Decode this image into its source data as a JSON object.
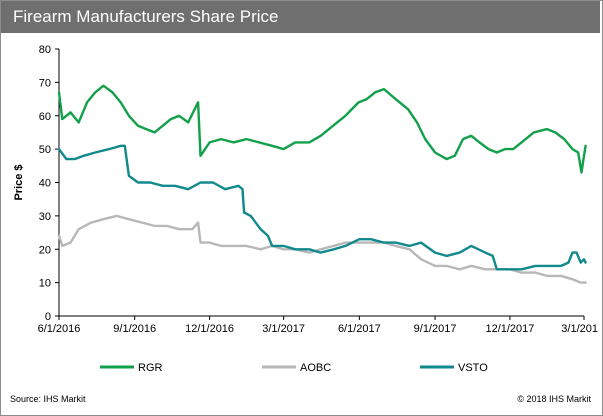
{
  "header": {
    "title": "Firearm Manufacturers Share Price"
  },
  "footer": {
    "source": "Source: IHS Markit",
    "copyright": "© 2018 IHS Markit"
  },
  "chart_data": {
    "type": "line",
    "ylabel": "Price $",
    "xlabel": "",
    "ylim": [
      0,
      80
    ],
    "y_ticks": [
      "0",
      "10",
      "20",
      "30",
      "40",
      "50",
      "60",
      "70",
      "80"
    ],
    "x_tick_labels": [
      "6/1/2016",
      "9/1/2016",
      "12/1/2016",
      "3/1/2017",
      "6/1/2017",
      "9/1/2017",
      "12/1/2017",
      "3/1/201"
    ],
    "x_tick_dates": [
      "2016-06-01",
      "2016-09-01",
      "2016-12-01",
      "2017-03-01",
      "2017-06-01",
      "2017-09-01",
      "2017-12-01",
      "2018-03-01"
    ],
    "grid": false,
    "legend_position": "bottom",
    "series": [
      {
        "name": "RGR",
        "color": "#12a04a",
        "points": [
          [
            "2016-06-01",
            67
          ],
          [
            "2016-06-05",
            59
          ],
          [
            "2016-06-15",
            61
          ],
          [
            "2016-06-25",
            58
          ],
          [
            "2016-07-05",
            64
          ],
          [
            "2016-07-15",
            67
          ],
          [
            "2016-07-25",
            69
          ],
          [
            "2016-08-05",
            67
          ],
          [
            "2016-08-15",
            64
          ],
          [
            "2016-08-25",
            60
          ],
          [
            "2016-09-05",
            57
          ],
          [
            "2016-09-15",
            56
          ],
          [
            "2016-09-25",
            55
          ],
          [
            "2016-10-05",
            57
          ],
          [
            "2016-10-15",
            59
          ],
          [
            "2016-10-25",
            60
          ],
          [
            "2016-11-05",
            58
          ],
          [
            "2016-11-15",
            63
          ],
          [
            "2016-11-17",
            64
          ],
          [
            "2016-11-20",
            48
          ],
          [
            "2016-12-01",
            52
          ],
          [
            "2016-12-15",
            53
          ],
          [
            "2016-12-30",
            52
          ],
          [
            "2017-01-15",
            53
          ],
          [
            "2017-01-30",
            52
          ],
          [
            "2017-02-15",
            51
          ],
          [
            "2017-03-01",
            50
          ],
          [
            "2017-03-15",
            52
          ],
          [
            "2017-04-01",
            52
          ],
          [
            "2017-04-15",
            54
          ],
          [
            "2017-04-30",
            57
          ],
          [
            "2017-05-15",
            60
          ],
          [
            "2017-05-31",
            64
          ],
          [
            "2017-06-10",
            65
          ],
          [
            "2017-06-20",
            67
          ],
          [
            "2017-07-01",
            68
          ],
          [
            "2017-07-15",
            65
          ],
          [
            "2017-07-30",
            62
          ],
          [
            "2017-08-10",
            58
          ],
          [
            "2017-08-20",
            53
          ],
          [
            "2017-09-01",
            49
          ],
          [
            "2017-09-15",
            47
          ],
          [
            "2017-09-25",
            48
          ],
          [
            "2017-10-05",
            53
          ],
          [
            "2017-10-15",
            54
          ],
          [
            "2017-10-25",
            52
          ],
          [
            "2017-11-05",
            50
          ],
          [
            "2017-11-15",
            49
          ],
          [
            "2017-11-25",
            50
          ],
          [
            "2017-12-05",
            50
          ],
          [
            "2017-12-15",
            52
          ],
          [
            "2017-12-30",
            55
          ],
          [
            "2018-01-15",
            56
          ],
          [
            "2018-01-25",
            55
          ],
          [
            "2018-02-05",
            53
          ],
          [
            "2018-02-15",
            50
          ],
          [
            "2018-02-22",
            49
          ],
          [
            "2018-02-26",
            43
          ],
          [
            "2018-03-01",
            48
          ],
          [
            "2018-03-03",
            51
          ]
        ]
      },
      {
        "name": "AOBC",
        "color": "#b7b7b7",
        "points": [
          [
            "2016-06-01",
            24
          ],
          [
            "2016-06-05",
            21
          ],
          [
            "2016-06-15",
            22
          ],
          [
            "2016-06-25",
            26
          ],
          [
            "2016-07-10",
            28
          ],
          [
            "2016-07-25",
            29
          ],
          [
            "2016-08-10",
            30
          ],
          [
            "2016-08-25",
            29
          ],
          [
            "2016-09-10",
            28
          ],
          [
            "2016-09-25",
            27
          ],
          [
            "2016-10-10",
            27
          ],
          [
            "2016-10-25",
            26
          ],
          [
            "2016-11-10",
            26
          ],
          [
            "2016-11-17",
            28
          ],
          [
            "2016-11-20",
            22
          ],
          [
            "2016-12-01",
            22
          ],
          [
            "2016-12-15",
            21
          ],
          [
            "2017-01-01",
            21
          ],
          [
            "2017-01-15",
            21
          ],
          [
            "2017-02-01",
            20
          ],
          [
            "2017-02-15",
            21
          ],
          [
            "2017-03-01",
            20
          ],
          [
            "2017-03-15",
            20
          ],
          [
            "2017-04-01",
            19
          ],
          [
            "2017-04-15",
            20
          ],
          [
            "2017-05-01",
            21
          ],
          [
            "2017-05-15",
            22
          ],
          [
            "2017-06-01",
            22
          ],
          [
            "2017-06-15",
            22
          ],
          [
            "2017-07-01",
            22
          ],
          [
            "2017-07-15",
            21
          ],
          [
            "2017-08-01",
            20
          ],
          [
            "2017-08-15",
            17
          ],
          [
            "2017-09-01",
            15
          ],
          [
            "2017-09-15",
            15
          ],
          [
            "2017-10-01",
            14
          ],
          [
            "2017-10-15",
            15
          ],
          [
            "2017-11-01",
            14
          ],
          [
            "2017-11-15",
            14
          ],
          [
            "2017-12-01",
            14
          ],
          [
            "2017-12-15",
            13
          ],
          [
            "2018-01-01",
            13
          ],
          [
            "2018-01-15",
            12
          ],
          [
            "2018-02-01",
            12
          ],
          [
            "2018-02-15",
            11
          ],
          [
            "2018-02-25",
            10
          ],
          [
            "2018-03-03",
            10
          ]
        ]
      },
      {
        "name": "VSTO",
        "color": "#11898d",
        "points": [
          [
            "2016-06-01",
            50
          ],
          [
            "2016-06-10",
            47
          ],
          [
            "2016-06-20",
            47
          ],
          [
            "2016-07-01",
            48
          ],
          [
            "2016-07-15",
            49
          ],
          [
            "2016-08-01",
            50
          ],
          [
            "2016-08-15",
            51
          ],
          [
            "2016-08-20",
            51
          ],
          [
            "2016-08-25",
            42
          ],
          [
            "2016-09-05",
            40
          ],
          [
            "2016-09-20",
            40
          ],
          [
            "2016-10-05",
            39
          ],
          [
            "2016-10-20",
            39
          ],
          [
            "2016-11-05",
            38
          ],
          [
            "2016-11-20",
            40
          ],
          [
            "2016-12-05",
            40
          ],
          [
            "2016-12-20",
            38
          ],
          [
            "2017-01-05",
            39
          ],
          [
            "2017-01-10",
            38
          ],
          [
            "2017-01-12",
            31
          ],
          [
            "2017-01-20",
            30
          ],
          [
            "2017-02-01",
            26
          ],
          [
            "2017-02-10",
            24
          ],
          [
            "2017-02-15",
            21
          ],
          [
            "2017-03-01",
            21
          ],
          [
            "2017-03-15",
            20
          ],
          [
            "2017-04-01",
            20
          ],
          [
            "2017-04-15",
            19
          ],
          [
            "2017-05-01",
            20
          ],
          [
            "2017-05-15",
            21
          ],
          [
            "2017-06-01",
            23
          ],
          [
            "2017-06-15",
            23
          ],
          [
            "2017-07-01",
            22
          ],
          [
            "2017-07-15",
            22
          ],
          [
            "2017-08-01",
            21
          ],
          [
            "2017-08-15",
            22
          ],
          [
            "2017-09-01",
            19
          ],
          [
            "2017-09-15",
            18
          ],
          [
            "2017-10-01",
            19
          ],
          [
            "2017-10-15",
            21
          ],
          [
            "2017-11-01",
            19
          ],
          [
            "2017-11-10",
            18
          ],
          [
            "2017-11-15",
            14
          ],
          [
            "2017-12-01",
            14
          ],
          [
            "2017-12-15",
            14
          ],
          [
            "2018-01-01",
            15
          ],
          [
            "2018-01-15",
            15
          ],
          [
            "2018-02-01",
            15
          ],
          [
            "2018-02-10",
            16
          ],
          [
            "2018-02-15",
            19
          ],
          [
            "2018-02-20",
            19
          ],
          [
            "2018-02-25",
            16
          ],
          [
            "2018-03-01",
            17
          ],
          [
            "2018-03-03",
            16
          ]
        ]
      }
    ]
  }
}
